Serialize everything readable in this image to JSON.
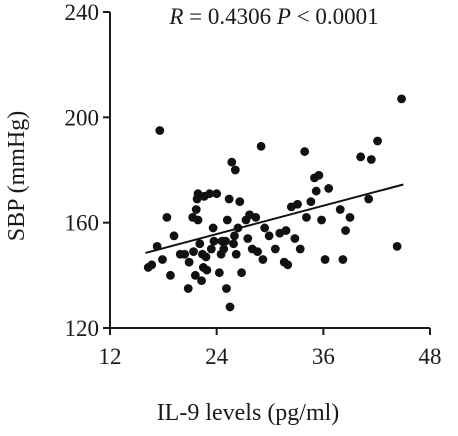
{
  "chart_data": {
    "type": "scatter",
    "title": "",
    "annotation": {
      "r_label": "R",
      "r_eq": " = 0.4306 ",
      "p_label": "P",
      "p_eq": " < 0.0001"
    },
    "xlabel": "IL-9 levels (pg/ml)",
    "ylabel": "SBP (mmHg)",
    "xlim": [
      12,
      48
    ],
    "ylim": [
      120,
      240
    ],
    "xticks": [
      12,
      24,
      36,
      48
    ],
    "yticks": [
      120,
      160,
      200,
      240
    ],
    "grid": false,
    "legend": "none",
    "trendline": {
      "x": [
        16,
        45
      ],
      "y": [
        148.5,
        174.5
      ]
    },
    "points": [
      {
        "x": 16.3,
        "y": 143
      },
      {
        "x": 16.7,
        "y": 144
      },
      {
        "x": 17.3,
        "y": 151
      },
      {
        "x": 17.6,
        "y": 195
      },
      {
        "x": 17.9,
        "y": 146
      },
      {
        "x": 18.4,
        "y": 162
      },
      {
        "x": 18.8,
        "y": 140
      },
      {
        "x": 19.2,
        "y": 155
      },
      {
        "x": 19.9,
        "y": 148
      },
      {
        "x": 20.4,
        "y": 148
      },
      {
        "x": 20.8,
        "y": 135
      },
      {
        "x": 20.9,
        "y": 145
      },
      {
        "x": 21.3,
        "y": 162
      },
      {
        "x": 21.4,
        "y": 149
      },
      {
        "x": 21.6,
        "y": 140
      },
      {
        "x": 21.7,
        "y": 165
      },
      {
        "x": 21.8,
        "y": 169
      },
      {
        "x": 21.9,
        "y": 171
      },
      {
        "x": 21.9,
        "y": 161
      },
      {
        "x": 22.1,
        "y": 152
      },
      {
        "x": 22.3,
        "y": 138
      },
      {
        "x": 22.4,
        "y": 148
      },
      {
        "x": 22.5,
        "y": 143
      },
      {
        "x": 22.6,
        "y": 170
      },
      {
        "x": 22.8,
        "y": 147
      },
      {
        "x": 22.9,
        "y": 142
      },
      {
        "x": 23.2,
        "y": 171
      },
      {
        "x": 23.4,
        "y": 150
      },
      {
        "x": 23.6,
        "y": 158
      },
      {
        "x": 23.7,
        "y": 153
      },
      {
        "x": 24.0,
        "y": 171
      },
      {
        "x": 24.3,
        "y": 141
      },
      {
        "x": 24.5,
        "y": 148
      },
      {
        "x": 24.6,
        "y": 153
      },
      {
        "x": 24.8,
        "y": 150
      },
      {
        "x": 25.0,
        "y": 153
      },
      {
        "x": 25.1,
        "y": 135
      },
      {
        "x": 25.2,
        "y": 161
      },
      {
        "x": 25.4,
        "y": 169
      },
      {
        "x": 25.5,
        "y": 128
      },
      {
        "x": 25.7,
        "y": 183
      },
      {
        "x": 25.9,
        "y": 152
      },
      {
        "x": 26.0,
        "y": 155
      },
      {
        "x": 26.1,
        "y": 180
      },
      {
        "x": 26.2,
        "y": 148
      },
      {
        "x": 26.4,
        "y": 158
      },
      {
        "x": 26.6,
        "y": 168
      },
      {
        "x": 26.8,
        "y": 141
      },
      {
        "x": 27.3,
        "y": 161
      },
      {
        "x": 27.5,
        "y": 154
      },
      {
        "x": 27.7,
        "y": 163
      },
      {
        "x": 28.0,
        "y": 150
      },
      {
        "x": 28.4,
        "y": 162
      },
      {
        "x": 28.6,
        "y": 149
      },
      {
        "x": 29.0,
        "y": 189
      },
      {
        "x": 29.2,
        "y": 146
      },
      {
        "x": 29.4,
        "y": 158
      },
      {
        "x": 29.9,
        "y": 155
      },
      {
        "x": 30.6,
        "y": 150
      },
      {
        "x": 31.1,
        "y": 156
      },
      {
        "x": 31.6,
        "y": 145
      },
      {
        "x": 31.8,
        "y": 157
      },
      {
        "x": 32.0,
        "y": 144
      },
      {
        "x": 32.4,
        "y": 166
      },
      {
        "x": 32.8,
        "y": 154
      },
      {
        "x": 33.1,
        "y": 167
      },
      {
        "x": 33.4,
        "y": 150
      },
      {
        "x": 33.9,
        "y": 187
      },
      {
        "x": 34.1,
        "y": 162
      },
      {
        "x": 34.6,
        "y": 168
      },
      {
        "x": 35.0,
        "y": 177
      },
      {
        "x": 35.2,
        "y": 172
      },
      {
        "x": 35.5,
        "y": 178
      },
      {
        "x": 35.8,
        "y": 161
      },
      {
        "x": 36.2,
        "y": 146
      },
      {
        "x": 36.6,
        "y": 173
      },
      {
        "x": 37.9,
        "y": 165
      },
      {
        "x": 38.2,
        "y": 146
      },
      {
        "x": 38.5,
        "y": 157
      },
      {
        "x": 39.0,
        "y": 162
      },
      {
        "x": 40.2,
        "y": 185
      },
      {
        "x": 41.1,
        "y": 169
      },
      {
        "x": 41.4,
        "y": 184
      },
      {
        "x": 42.1,
        "y": 191
      },
      {
        "x": 44.3,
        "y": 151
      },
      {
        "x": 44.8,
        "y": 207
      }
    ]
  }
}
